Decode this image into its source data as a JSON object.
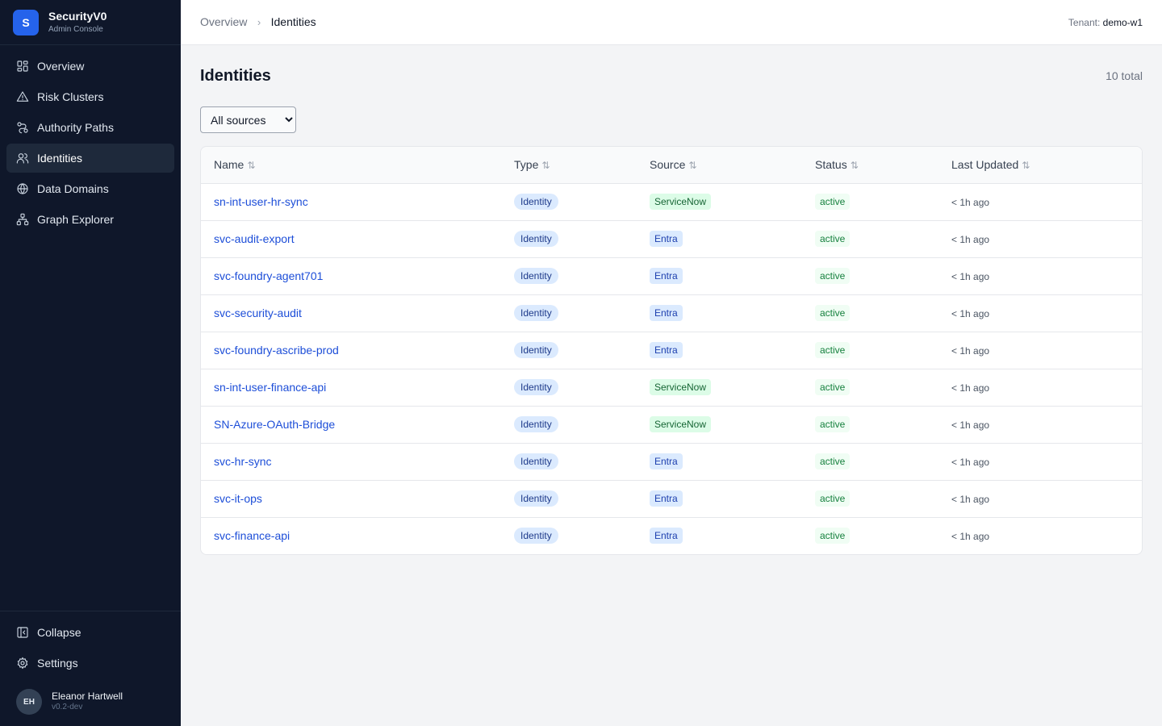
{
  "brand": {
    "logo_letter": "S",
    "name": "SecurityV0",
    "subtitle": "Admin Console",
    "accent": "#2563eb"
  },
  "sidebar": {
    "items": [
      {
        "label": "Overview",
        "icon": "grid-icon",
        "active": false
      },
      {
        "label": "Risk Clusters",
        "icon": "warning-triangle-icon",
        "active": false
      },
      {
        "label": "Authority Paths",
        "icon": "route-icon",
        "active": false
      },
      {
        "label": "Identities",
        "icon": "users-icon",
        "active": true
      },
      {
        "label": "Data Domains",
        "icon": "globe-icon",
        "active": false
      },
      {
        "label": "Graph Explorer",
        "icon": "network-icon",
        "active": false
      }
    ],
    "bottom": [
      {
        "label": "Collapse",
        "icon": "collapse-panel-icon"
      },
      {
        "label": "Settings",
        "icon": "gear-icon"
      }
    ],
    "user": {
      "initials": "EH",
      "name": "Eleanor Hartwell",
      "version": "v0.2-dev"
    }
  },
  "topbar": {
    "breadcrumb": [
      "Overview",
      "Identities"
    ],
    "tenant_label": "Tenant:",
    "tenant_value": "demo-w1"
  },
  "main": {
    "title": "Identities",
    "total": "10 total",
    "filter": {
      "selected": "All sources"
    },
    "table": {
      "columns": [
        "Name",
        "Type",
        "Source",
        "Status",
        "Last Updated"
      ],
      "rows": [
        {
          "name": "sn-int-user-hr-sync",
          "type": "Identity",
          "source": "ServiceNow",
          "status": "active",
          "updated": "< 1h ago"
        },
        {
          "name": "svc-audit-export",
          "type": "Identity",
          "source": "Entra",
          "status": "active",
          "updated": "< 1h ago"
        },
        {
          "name": "svc-foundry-agent701",
          "type": "Identity",
          "source": "Entra",
          "status": "active",
          "updated": "< 1h ago"
        },
        {
          "name": "svc-security-audit",
          "type": "Identity",
          "source": "Entra",
          "status": "active",
          "updated": "< 1h ago"
        },
        {
          "name": "svc-foundry-ascribe-prod",
          "type": "Identity",
          "source": "Entra",
          "status": "active",
          "updated": "< 1h ago"
        },
        {
          "name": "sn-int-user-finance-api",
          "type": "Identity",
          "source": "ServiceNow",
          "status": "active",
          "updated": "< 1h ago"
        },
        {
          "name": "SN-Azure-OAuth-Bridge",
          "type": "Identity",
          "source": "ServiceNow",
          "status": "active",
          "updated": "< 1h ago"
        },
        {
          "name": "svc-hr-sync",
          "type": "Identity",
          "source": "Entra",
          "status": "active",
          "updated": "< 1h ago"
        },
        {
          "name": "svc-it-ops",
          "type": "Identity",
          "source": "Entra",
          "status": "active",
          "updated": "< 1h ago"
        },
        {
          "name": "svc-finance-api",
          "type": "Identity",
          "source": "Entra",
          "status": "active",
          "updated": "< 1h ago"
        }
      ]
    }
  }
}
